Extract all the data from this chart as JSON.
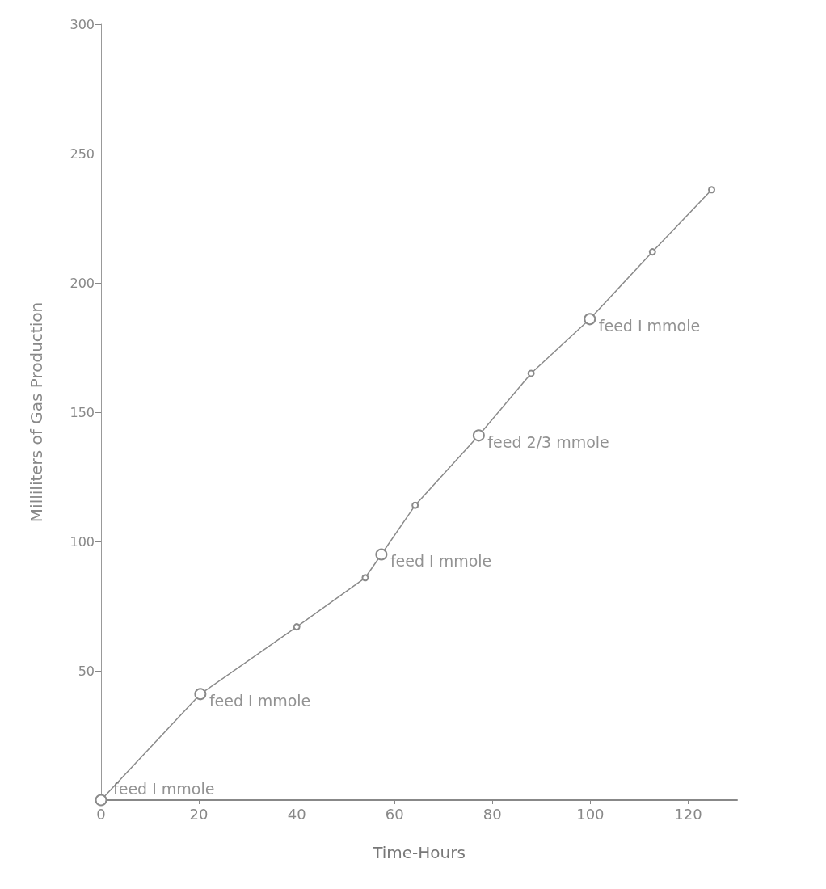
{
  "chart_data": {
    "type": "line",
    "xlabel": "Time-Hours",
    "ylabel": "Milliliters of Gas Production",
    "x": [
      0,
      20.3,
      40,
      54,
      57.3,
      64.2,
      77.2,
      87.9,
      99.9,
      112.7,
      124.8
    ],
    "series": [
      {
        "color": "#8a8a8a",
        "values": [
          0,
          41,
          67,
          86,
          95,
          114,
          141,
          165,
          186,
          212,
          236
        ]
      }
    ],
    "xlim": [
      0,
      130
    ],
    "xticks": [
      0,
      20,
      40,
      60,
      80,
      100,
      120
    ],
    "ylim": [
      0,
      300
    ],
    "yticks": [
      50,
      100,
      150,
      200,
      250,
      300
    ],
    "grid": false,
    "marker": "circle",
    "line_style": "solid",
    "annotations": [
      {
        "text": "feed I mmole",
        "x": 0,
        "y": 0
      },
      {
        "text": "feed I mmole",
        "x": 20.3,
        "y": 41
      },
      {
        "text": "feed I mmole",
        "x": 57.3,
        "y": 95
      },
      {
        "text": "feed 2/3 mmole",
        "x": 77.2,
        "y": 141
      },
      {
        "text": "feed I mmole",
        "x": 99.9,
        "y": 186
      }
    ]
  }
}
